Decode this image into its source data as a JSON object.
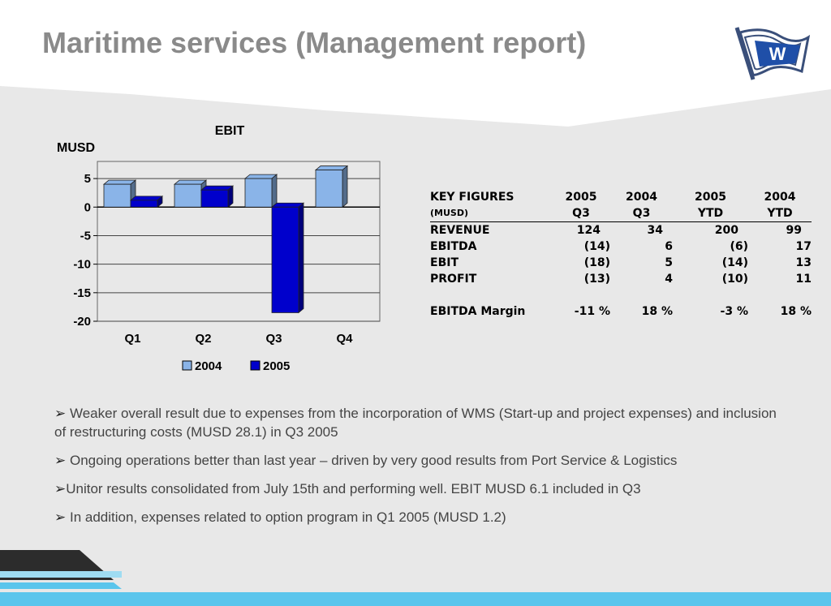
{
  "title": "Maritime services (Management report)",
  "logo": {
    "letter": "W",
    "icon": "flag-icon"
  },
  "colors": {
    "title": "#8a8a8a",
    "background_panel": "#e8e8e8",
    "series_2004": "#8ab4e8",
    "series_2005": "#0000cc",
    "footer_blue": "#5bc5ec",
    "footer_dark": "#2c2c2c"
  },
  "chart_data": {
    "type": "bar",
    "title": "EBIT",
    "ylabel": "MUSD",
    "categories": [
      "Q1",
      "Q2",
      "Q3",
      "Q4"
    ],
    "series": [
      {
        "name": "2004",
        "values": [
          4,
          4,
          5,
          6.5
        ]
      },
      {
        "name": "2005",
        "values": [
          1.2,
          3,
          -18.5,
          null
        ]
      }
    ],
    "ylim": [
      -20,
      8
    ],
    "yticks": [
      5,
      0,
      -5,
      -10,
      -15,
      -20
    ],
    "grid": true,
    "legend": "bottom"
  },
  "key_figures": {
    "header": {
      "label": "KEY FIGURES",
      "unit": "(MUSD)",
      "columns": [
        {
          "year": "2005",
          "period": "Q3"
        },
        {
          "year": "2004",
          "period": "Q3"
        },
        {
          "year": "2005",
          "period": "YTD"
        },
        {
          "year": "2004",
          "period": "YTD"
        }
      ]
    },
    "rows": [
      {
        "label": "REVENUE",
        "values": [
          "124",
          "34",
          "200",
          "99"
        ]
      },
      {
        "label": "EBITDA",
        "values": [
          "(14)",
          "6",
          "(6)",
          "17"
        ]
      },
      {
        "label": "EBIT",
        "values": [
          "(18)",
          "5",
          "(14)",
          "13"
        ]
      },
      {
        "label": "PROFIT",
        "values": [
          "(13)",
          "4",
          "(10)",
          "11"
        ]
      }
    ],
    "margin_row": {
      "label": "EBITDA Margin",
      "values": [
        "-11 %",
        "18 %",
        "-3 %",
        "18 %"
      ]
    }
  },
  "bullets": [
    {
      "arrow": "➢ ",
      "text": "Weaker overall result due to expenses from the incorporation of WMS (Start-up and project expenses) and inclusion of restructuring costs (MUSD 28.1) in Q3 2005"
    },
    {
      "arrow": "➢ ",
      "text": "Ongoing operations better than last year – driven by very good results from Port Service & Logistics"
    },
    {
      "arrow": "➢",
      "text": "Unitor results consolidated from July 15th and performing well. EBIT MUSD 6.1 included in Q3"
    },
    {
      "arrow": "➢ ",
      "text": "In addition, expenses related to option program in Q1 2005 (MUSD 1.2)"
    }
  ]
}
